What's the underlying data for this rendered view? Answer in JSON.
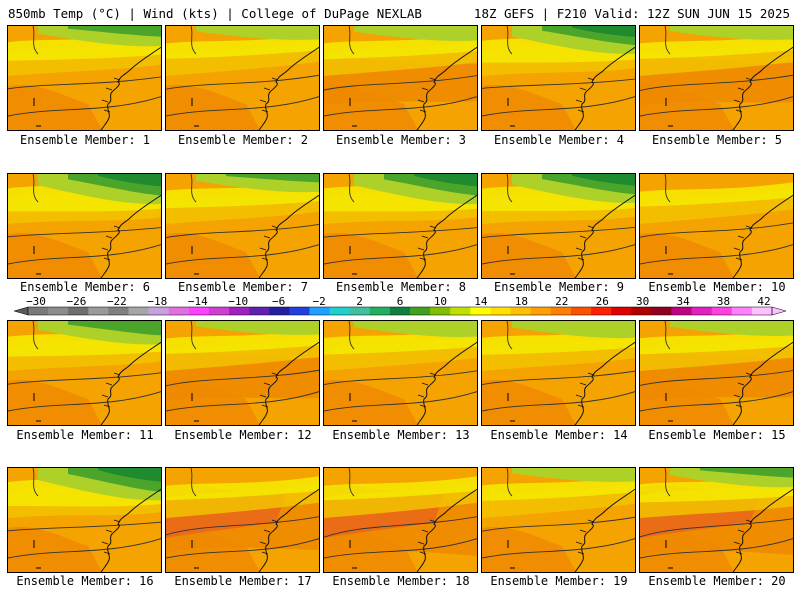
{
  "header": {
    "left": "850mb Temp (°C) | Wind (kts) | College of DuPage NEXLAB",
    "right": "18Z GEFS | F210 Valid: 12Z SUN JUN 15 2025"
  },
  "member_prefix": "Ensemble Member: ",
  "members": [
    {
      "id": 1,
      "label": "Ensemble Member: 1",
      "cool": 0.45,
      "warm": 0.1
    },
    {
      "id": 2,
      "label": "Ensemble Member: 2",
      "cool": 0.15,
      "warm": 0.15
    },
    {
      "id": 3,
      "label": "Ensemble Member: 3",
      "cool": 0.2,
      "warm": 0.25
    },
    {
      "id": 4,
      "label": "Ensemble Member: 4",
      "cool": 0.8,
      "warm": 0.05
    },
    {
      "id": 5,
      "label": "Ensemble Member: 5",
      "cool": 0.15,
      "warm": 0.3
    },
    {
      "id": 6,
      "label": "Ensemble Member: 6",
      "cool": 0.9,
      "warm": 0.1
    },
    {
      "id": 7,
      "label": "Ensemble Member: 7",
      "cool": 0.35,
      "warm": 0.2
    },
    {
      "id": 8,
      "label": "Ensemble Member: 8",
      "cool": 0.9,
      "warm": 0.15
    },
    {
      "id": 9,
      "label": "Ensemble Member: 9",
      "cool": 0.85,
      "warm": 0.2
    },
    {
      "id": 10,
      "label": "Ensemble Member: 10",
      "cool": 0.1,
      "warm": 0.15
    },
    {
      "id": 11,
      "label": "Ensemble Member: 11",
      "cool": 0.6,
      "warm": 0.15
    },
    {
      "id": 12,
      "label": "Ensemble Member: 12",
      "cool": 0.15,
      "warm": 0.35
    },
    {
      "id": 13,
      "label": "Ensemble Member: 13",
      "cool": 0.25,
      "warm": 0.2
    },
    {
      "id": 14,
      "label": "Ensemble Member: 14",
      "cool": 0.3,
      "warm": 0.2
    },
    {
      "id": 15,
      "label": "Ensemble Member: 15",
      "cool": 0.2,
      "warm": 0.3
    },
    {
      "id": 16,
      "label": "Ensemble Member: 16",
      "cool": 1.0,
      "warm": 0.1
    },
    {
      "id": 17,
      "label": "Ensemble Member: 17",
      "cool": 0.05,
      "warm": 0.6
    },
    {
      "id": 18,
      "label": "Ensemble Member: 18",
      "cool": 0.05,
      "warm": 0.9
    },
    {
      "id": 19,
      "label": "Ensemble Member: 19",
      "cool": 0.15,
      "warm": 0.15
    },
    {
      "id": 20,
      "label": "Ensemble Member: 20",
      "cool": 0.4,
      "warm": 0.85
    }
  ],
  "colorbar": {
    "ticks": [
      "−30",
      "−26",
      "−22",
      "−18",
      "−14",
      "−10",
      "−6",
      "−2",
      "2",
      "6",
      "10",
      "14",
      "18",
      "22",
      "26",
      "30",
      "34",
      "38",
      "42"
    ],
    "colors": [
      "#7a7a7a",
      "#8c8c8c",
      "#6e6e6e",
      "#9a9a9a",
      "#7f7f7f",
      "#a6a6a6",
      "#c8a0e0",
      "#e070e0",
      "#ff40ff",
      "#d040d0",
      "#a020c0",
      "#6020b0",
      "#2020a0",
      "#2040e0",
      "#20a0ff",
      "#20d0d0",
      "#40c0a0",
      "#20b060",
      "#108040",
      "#40a020",
      "#80c000",
      "#c0e000",
      "#ffff00",
      "#ffe000",
      "#ffc000",
      "#ffa000",
      "#ff8000",
      "#ff5000",
      "#ff2000",
      "#e00000",
      "#b00000",
      "#900020",
      "#c00080",
      "#e020c0",
      "#ff40e0",
      "#ff80ff",
      "#ffc0ff"
    ]
  },
  "colors": {
    "green_dark": "#1f8a2e",
    "green": "#4aa52a",
    "yellow_green": "#aed12a",
    "yellow": "#f5e700",
    "gold": "#f2c200",
    "orange": "#f5a300",
    "dark_orange": "#ee8a00",
    "red_orange": "#e8641c"
  }
}
